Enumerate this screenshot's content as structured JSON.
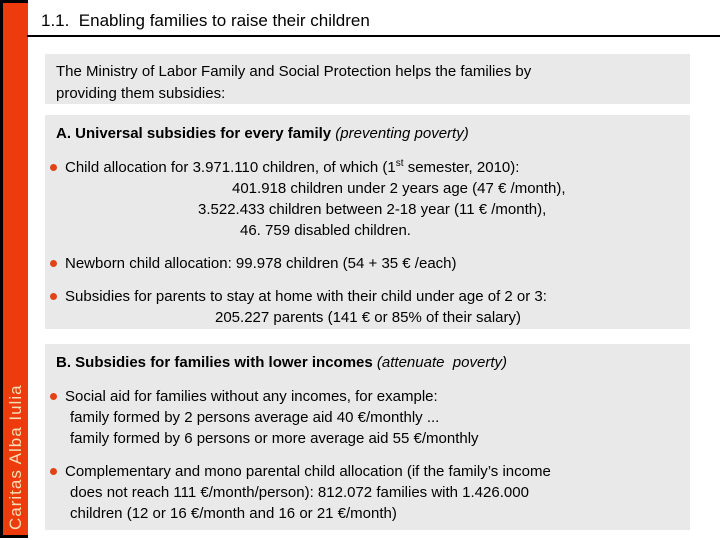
{
  "sidebar": {
    "logo_text": "Caritas Alba Iulia"
  },
  "header": {
    "title": "1.1.  Enabling families to raise their children"
  },
  "intro": {
    "line1": "The Ministry of Labor Family and Social Protection helps the families by",
    "line2": "providing them subsidies:"
  },
  "section_a": {
    "heading_bold": "A. Universal subsidies for every family ",
    "heading_italic": "(preventing poverty)",
    "bullet1_pre": "Child allocation for 3.971.110 children, of which (1",
    "bullet1_sup": "st",
    "bullet1_post": " semester, 2010):",
    "bullet1_lines": [
      "401.918 children under 2 years age (47 € /month),",
      "3.522.433 children between 2-18 year (11 € /month),",
      "46. 759 disabled children."
    ],
    "bullet2": "Newborn child allocation: 99.978 children (54 + 35 € /each)",
    "bullet3": "Subsidies for parents to stay at home with their child under age of 2 or 3:",
    "bullet3_line2": "205.227 parents (141 € or 85% of their salary)"
  },
  "section_b": {
    "heading_bold": "B. Subsidies for families with lower incomes ",
    "heading_italic": "(attenuate  poverty)",
    "bullet1": "Social aid for families without any incomes, for example:",
    "bullet1_lines": [
      "family formed by 2 persons average aid 40 €/monthly ...",
      "family formed by 6 persons or more average aid 55 €/monthly"
    ],
    "bullet2_lines": [
      "Complementary and mono parental child allocation (if the family’s income",
      "does not reach 111 €/month/person): 812.072 families with 1.426.000",
      "children (12 or 16 €/month and 16 or 21 €/month)"
    ]
  },
  "colors": {
    "sidebar_bg": "#EE3B0D",
    "sidebar_text": "#F2DDB5",
    "box_bg": "#E9E9E9",
    "bullet": "#E34213",
    "rule": "#000000"
  }
}
